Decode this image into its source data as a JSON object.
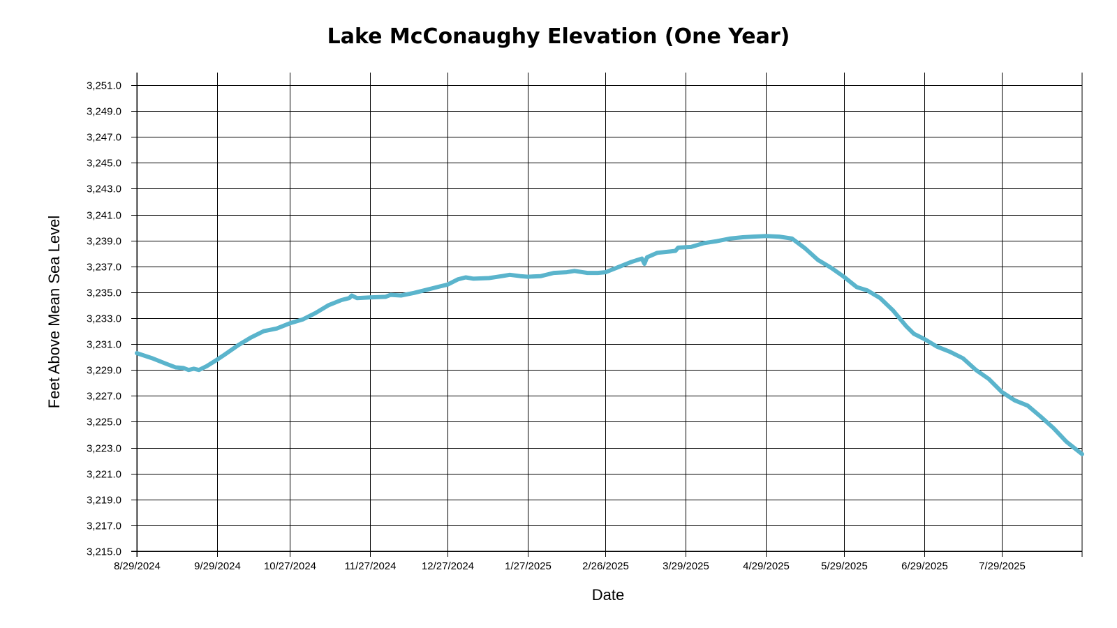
{
  "chart_data": {
    "type": "line",
    "title": "Lake McConaughy Elevation (One Year)",
    "xlabel": "Date",
    "ylabel": "Feet Above Mean Sea Level",
    "x_range": [
      "2024-08-29",
      "2025-08-29"
    ],
    "ylim": [
      3215.0,
      3252.0
    ],
    "x_ticks": [
      "8/29/2024",
      "9/29/2024",
      "10/27/2024",
      "11/27/2024",
      "12/27/2024",
      "1/27/2025",
      "2/26/2025",
      "3/29/2025",
      "4/29/2025",
      "5/29/2025",
      "6/29/2025",
      "7/29/2025"
    ],
    "y_ticks": [
      "3,251.0",
      "3,249.0",
      "3,247.0",
      "3,245.0",
      "3,243.0",
      "3,241.0",
      "3,239.0",
      "3,237.0",
      "3,235.0",
      "3,233.0",
      "3,231.0",
      "3,229.0",
      "3,227.0",
      "3,225.0",
      "3,223.0",
      "3,221.0",
      "3,219.0",
      "3,217.0",
      "3,215.0"
    ],
    "grid": true,
    "legend": "none",
    "series": [
      {
        "color": "#5ab4cc",
        "points": [
          [
            "2024-08-29",
            3230.3
          ],
          [
            "2024-09-04",
            3229.9
          ],
          [
            "2024-09-09",
            3229.5
          ],
          [
            "2024-09-13",
            3229.2
          ],
          [
            "2024-09-16",
            3229.15
          ],
          [
            "2024-09-18",
            3229.0
          ],
          [
            "2024-09-20",
            3229.1
          ],
          [
            "2024-09-22",
            3229.0
          ],
          [
            "2024-09-25",
            3229.3
          ],
          [
            "2024-09-29",
            3229.8
          ],
          [
            "2024-10-02",
            3230.2
          ],
          [
            "2024-10-07",
            3230.9
          ],
          [
            "2024-10-12",
            3231.5
          ],
          [
            "2024-10-17",
            3232.0
          ],
          [
            "2024-10-22",
            3232.2
          ],
          [
            "2024-10-27",
            3232.6
          ],
          [
            "2024-11-01",
            3232.9
          ],
          [
            "2024-11-06",
            3233.4
          ],
          [
            "2024-11-11",
            3234.0
          ],
          [
            "2024-11-16",
            3234.4
          ],
          [
            "2024-11-19",
            3234.55
          ],
          [
            "2024-11-20",
            3234.75
          ],
          [
            "2024-11-22",
            3234.55
          ],
          [
            "2024-11-27",
            3234.6
          ],
          [
            "2024-12-03",
            3234.65
          ],
          [
            "2024-12-05",
            3234.8
          ],
          [
            "2024-12-09",
            3234.75
          ],
          [
            "2024-12-14",
            3234.95
          ],
          [
            "2024-12-19",
            3235.2
          ],
          [
            "2024-12-24",
            3235.45
          ],
          [
            "2024-12-27",
            3235.6
          ],
          [
            "2024-12-31",
            3236.0
          ],
          [
            "2025-01-03",
            3236.15
          ],
          [
            "2025-01-06",
            3236.05
          ],
          [
            "2025-01-12",
            3236.1
          ],
          [
            "2025-01-17",
            3236.25
          ],
          [
            "2025-01-20",
            3236.35
          ],
          [
            "2025-01-24",
            3236.25
          ],
          [
            "2025-01-27",
            3236.2
          ],
          [
            "2025-02-01",
            3236.25
          ],
          [
            "2025-02-06",
            3236.5
          ],
          [
            "2025-02-11",
            3236.55
          ],
          [
            "2025-02-14",
            3236.65
          ],
          [
            "2025-02-19",
            3236.5
          ],
          [
            "2025-02-23",
            3236.5
          ],
          [
            "2025-02-26",
            3236.55
          ],
          [
            "2025-03-03",
            3236.95
          ],
          [
            "2025-03-08",
            3237.35
          ],
          [
            "2025-03-12",
            3237.6
          ],
          [
            "2025-03-13",
            3237.2
          ],
          [
            "2025-03-14",
            3237.7
          ],
          [
            "2025-03-18",
            3238.05
          ],
          [
            "2025-03-23",
            3238.15
          ],
          [
            "2025-03-25",
            3238.2
          ],
          [
            "2025-03-26",
            3238.45
          ],
          [
            "2025-03-31",
            3238.5
          ],
          [
            "2025-04-05",
            3238.8
          ],
          [
            "2025-04-10",
            3238.95
          ],
          [
            "2025-04-15",
            3239.15
          ],
          [
            "2025-04-20",
            3239.25
          ],
          [
            "2025-04-24",
            3239.3
          ],
          [
            "2025-04-29",
            3239.35
          ],
          [
            "2025-05-04",
            3239.3
          ],
          [
            "2025-05-09",
            3239.15
          ],
          [
            "2025-05-14",
            3238.4
          ],
          [
            "2025-05-19",
            3237.5
          ],
          [
            "2025-05-24",
            3236.9
          ],
          [
            "2025-05-29",
            3236.2
          ],
          [
            "2025-06-03",
            3235.4
          ],
          [
            "2025-06-07",
            3235.15
          ],
          [
            "2025-06-12",
            3234.55
          ],
          [
            "2025-06-17",
            3233.6
          ],
          [
            "2025-06-22",
            3232.4
          ],
          [
            "2025-06-25",
            3231.8
          ],
          [
            "2025-06-29",
            3231.4
          ],
          [
            "2025-07-04",
            3230.8
          ],
          [
            "2025-07-09",
            3230.4
          ],
          [
            "2025-07-14",
            3229.9
          ],
          [
            "2025-07-19",
            3229.0
          ],
          [
            "2025-07-24",
            3228.3
          ],
          [
            "2025-07-29",
            3227.3
          ],
          [
            "2025-08-03",
            3226.65
          ],
          [
            "2025-08-08",
            3226.25
          ],
          [
            "2025-08-13",
            3225.4
          ],
          [
            "2025-08-18",
            3224.5
          ],
          [
            "2025-08-23",
            3223.45
          ],
          [
            "2025-08-29",
            3222.5
          ]
        ]
      }
    ]
  }
}
